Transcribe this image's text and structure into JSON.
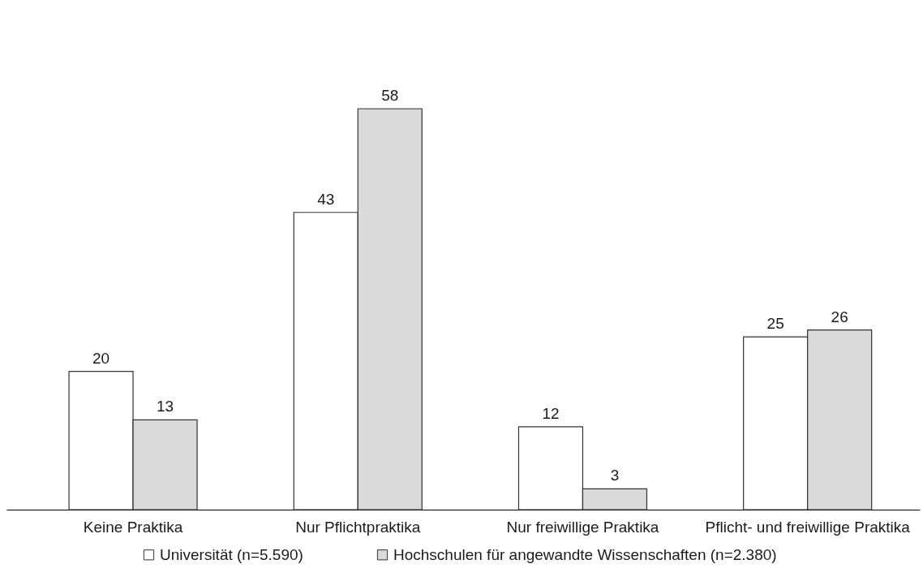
{
  "chart_data": {
    "type": "bar",
    "categories": [
      "Keine Praktika",
      "Nur Pflichtpraktika",
      "Nur freiwillige Praktika",
      "Pflicht- und freiwillige Praktika"
    ],
    "series": [
      {
        "name": "Universität (n=5.590)",
        "color": "#ffffff",
        "values": [
          20,
          43,
          12,
          25
        ]
      },
      {
        "name": "Hochschulen für angewandte Wissenschaften (n=2.380)",
        "color": "#dadada",
        "values": [
          13,
          58,
          3,
          26
        ]
      }
    ],
    "data_labels": true,
    "legend": "bottom"
  }
}
